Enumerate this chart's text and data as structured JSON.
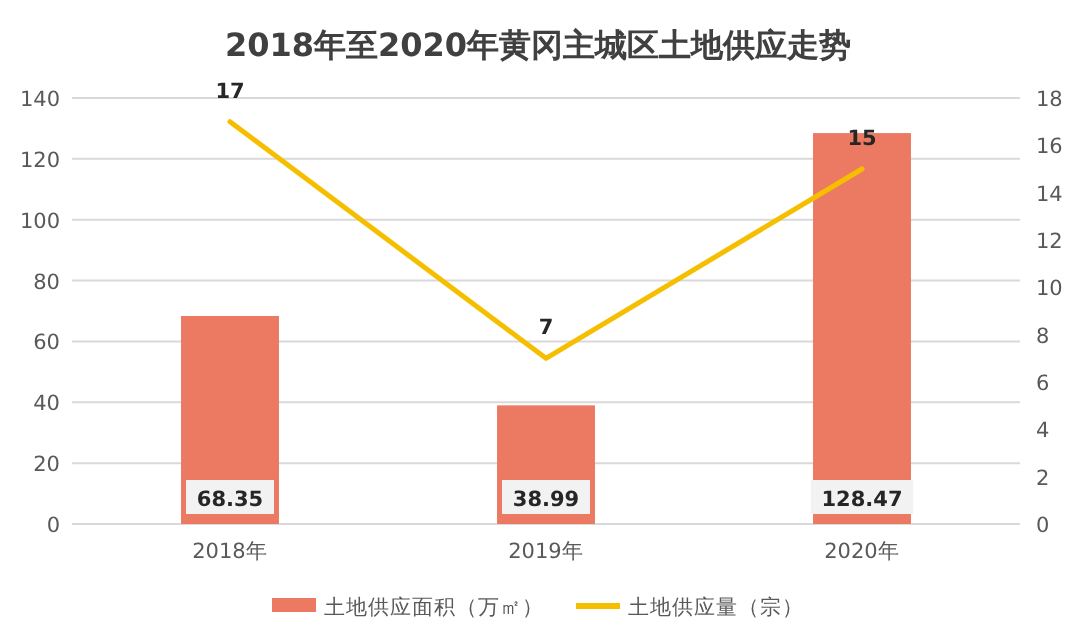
{
  "chart_data": {
    "type": "bar",
    "title": "2018年至2020年黄冈主城区土地供应走势",
    "categories": [
      "2018年",
      "2019年",
      "2020年"
    ],
    "series": [
      {
        "name": "土地供应面积（万㎡）",
        "color": "#ec7a63",
        "values": [
          68.35,
          38.99,
          128.47
        ]
      },
      {
        "name": "土地供应量（宗）",
        "type": "line",
        "axis": "y2",
        "color": "#f5bf00",
        "values": [
          17,
          7,
          15
        ]
      }
    ],
    "ylim": [
      0,
      140
    ],
    "yticks": [
      0,
      20,
      40,
      60,
      80,
      100,
      120,
      140
    ],
    "y2lim": [
      0,
      18
    ],
    "y2ticks": [
      0,
      2,
      4,
      6,
      8,
      10,
      12,
      14,
      16,
      18
    ],
    "grid": "y",
    "legend": "bottom",
    "data_labels": true
  }
}
